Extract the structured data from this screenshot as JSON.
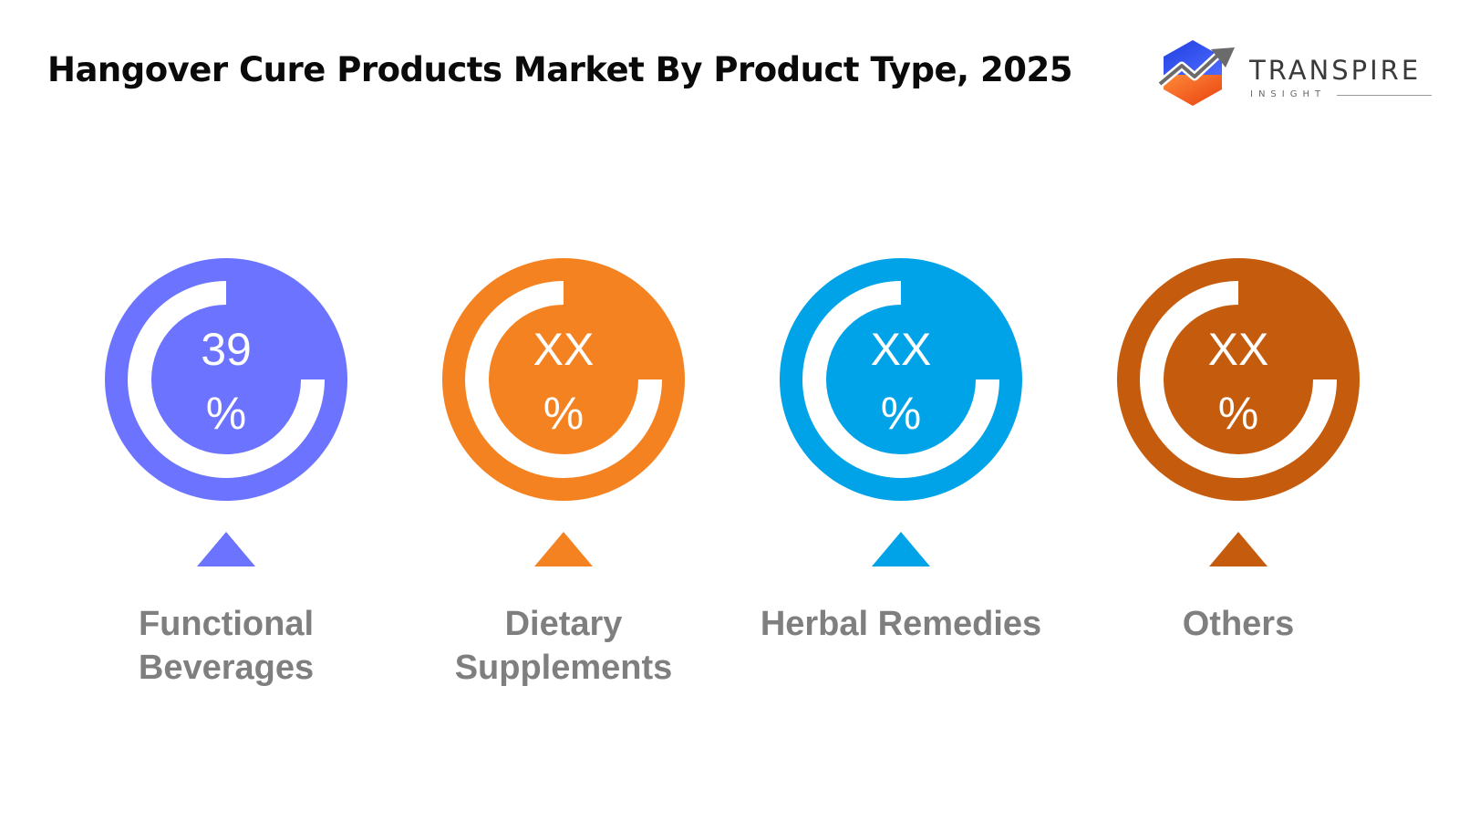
{
  "header": {
    "title": "Hangover Cure Products Market By Product Type, 2025"
  },
  "logo": {
    "name": "TRANSPIRE",
    "subtitle": "INSIGHT",
    "colors": {
      "blue": "#2d43e6",
      "orange": "#f5631e",
      "gray": "#6b6b6b"
    }
  },
  "chart_data": {
    "type": "pie",
    "title": "Hangover Cure Products Market By Product Type, 2025",
    "categories": [
      "Functional Beverages",
      "Dietary Supplements",
      "Herbal Remedies",
      "Others"
    ],
    "values": [
      39,
      null,
      null,
      null
    ],
    "value_labels": [
      "39",
      "XX",
      "XX",
      "XX"
    ],
    "unit_label": "%",
    "label_lines": [
      [
        "Functional",
        "Beverages"
      ],
      [
        "Dietary",
        "Supplements"
      ],
      [
        "Herbal Remedies"
      ],
      [
        "Others"
      ]
    ],
    "colors": [
      "#6b73ff",
      "#f48220",
      "#00a3e8",
      "#c55b0c"
    ],
    "label_color": "#7f7f7f"
  }
}
